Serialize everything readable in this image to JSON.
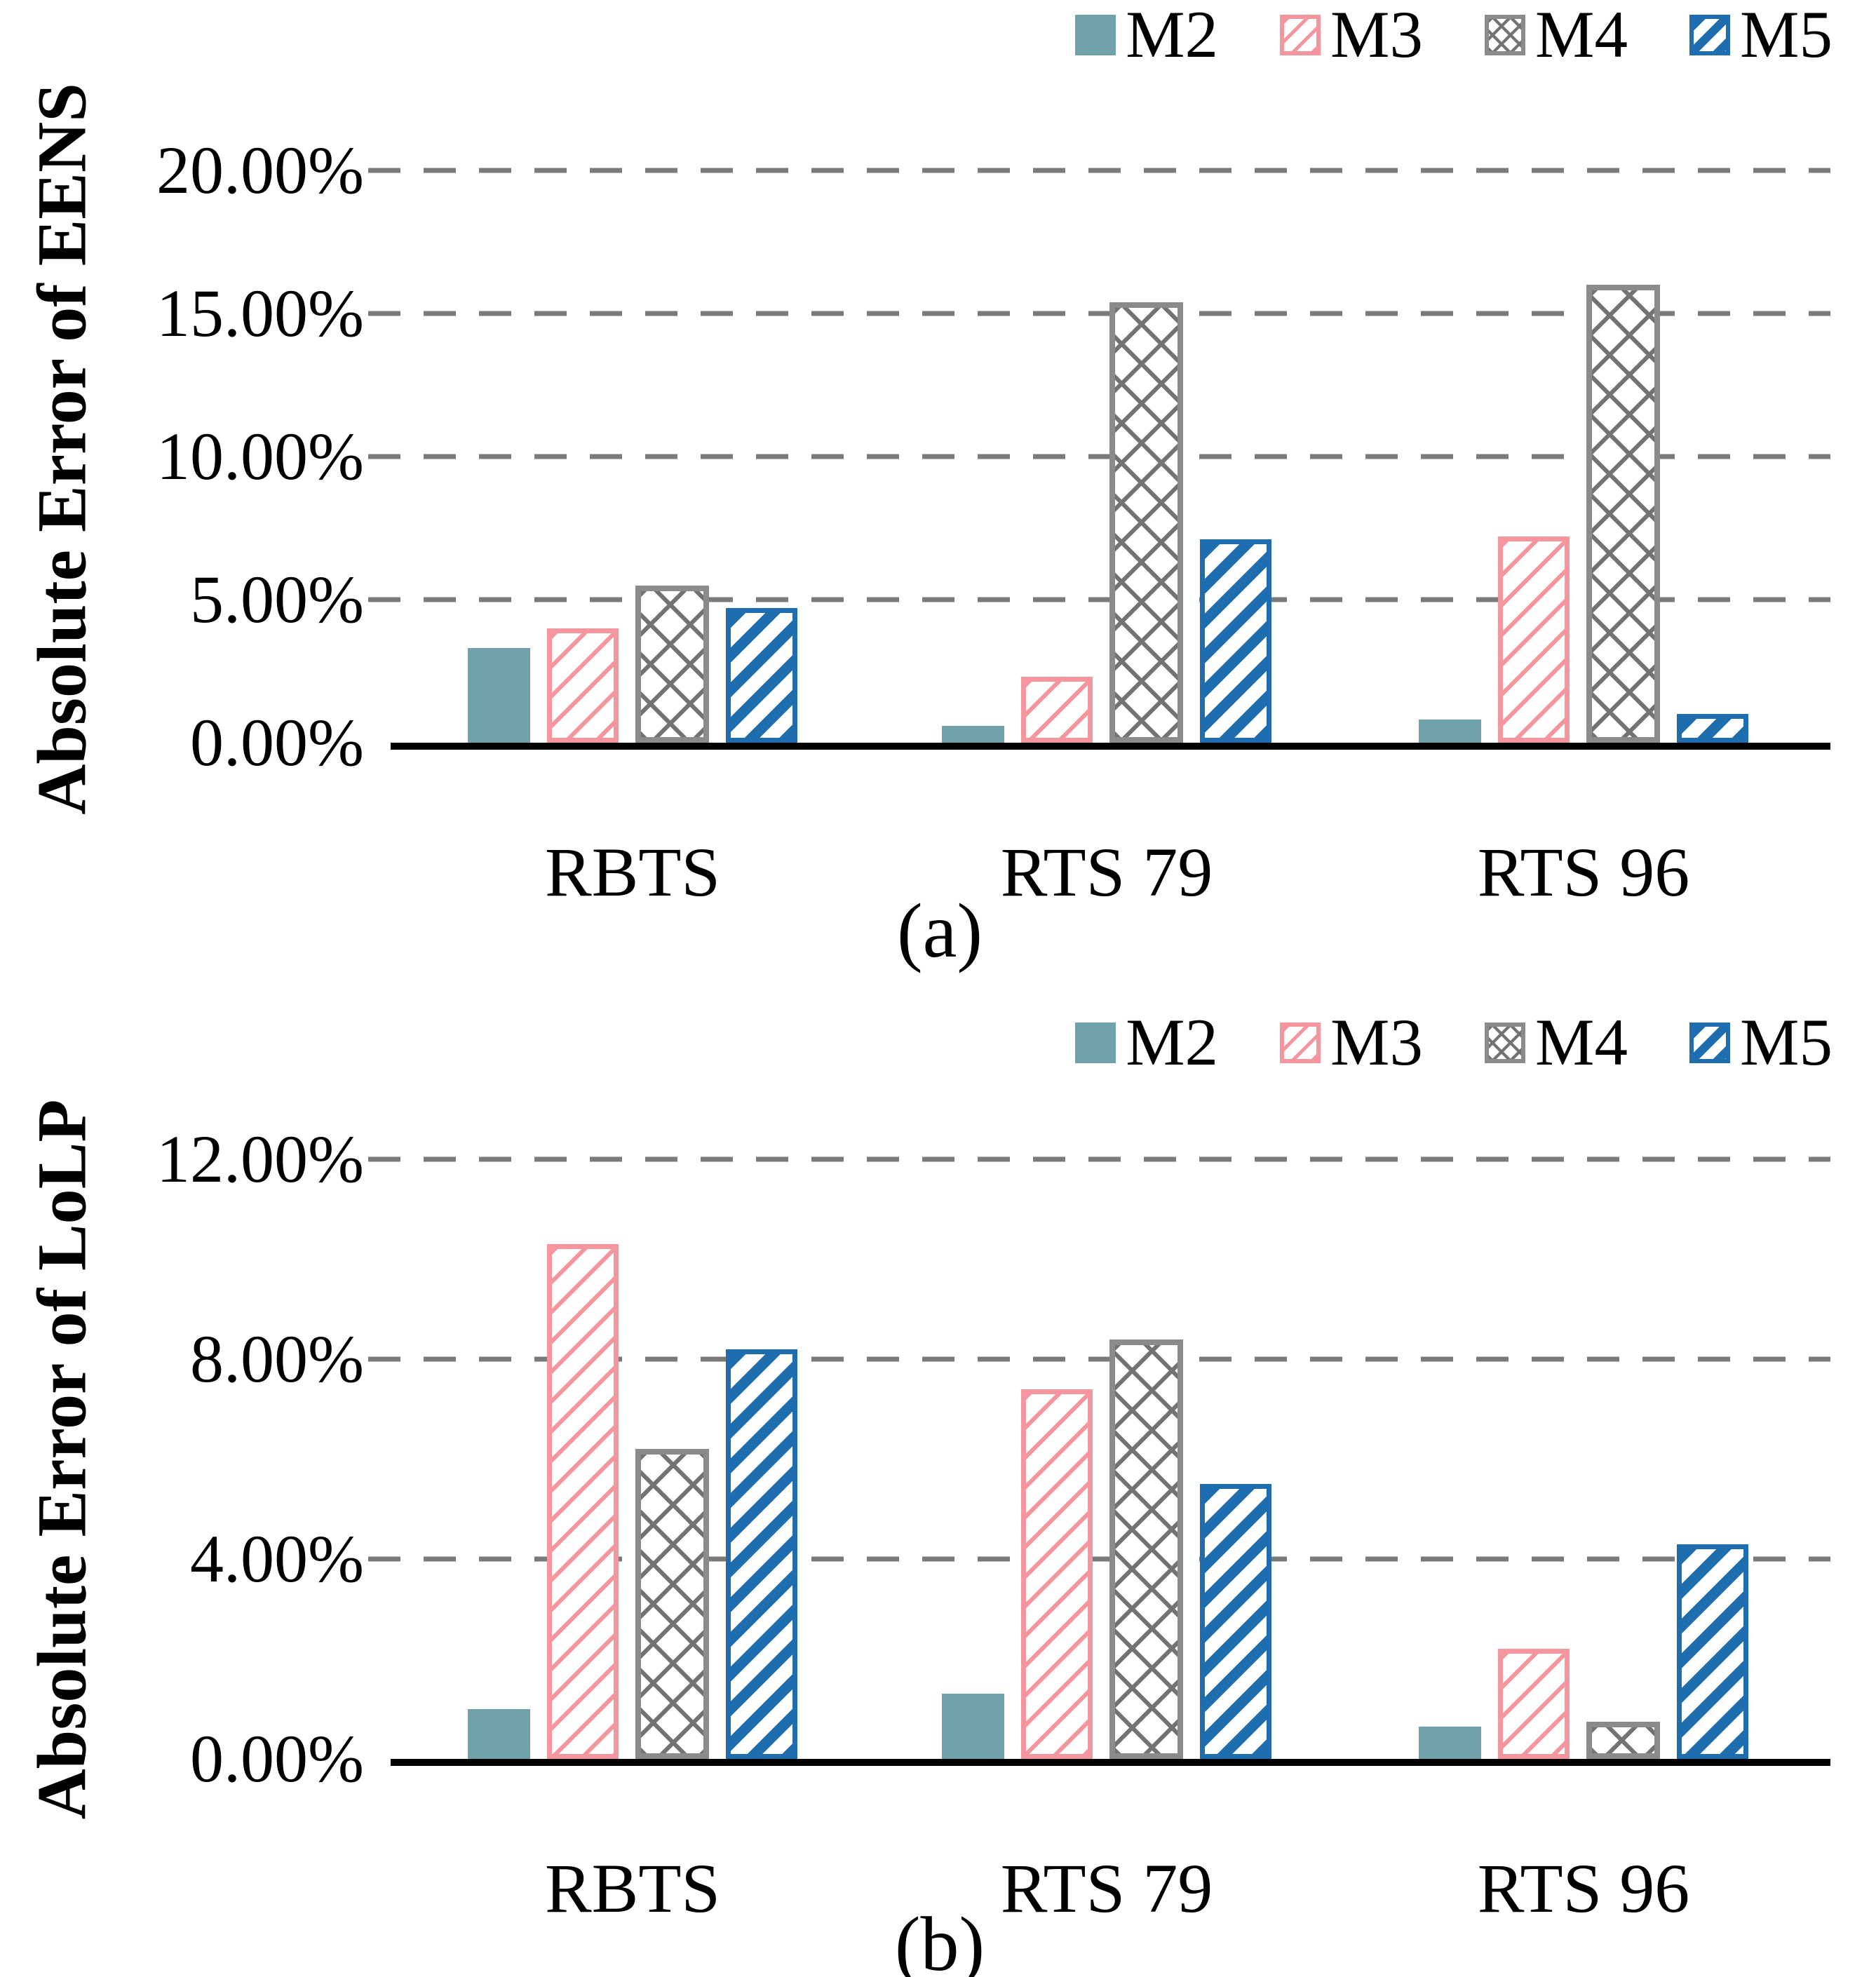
{
  "figure": {
    "background": "#ffffff"
  },
  "colors": {
    "M2": "#6FA2AA",
    "M3": "#F5959D",
    "M4": "#8B8B8B",
    "M5": "#1E6DAE",
    "gridline": "#7A7A7A",
    "axis": "#000000"
  },
  "legend": {
    "items": [
      "M2",
      "M3",
      "M4",
      "M5"
    ]
  },
  "chart_data": [
    {
      "id": "a",
      "type": "bar",
      "title": "(a)",
      "ylabel": "Absolute Error of EENS",
      "categories": [
        "RBTS",
        "RTS 79",
        "RTS 96"
      ],
      "series": [
        {
          "name": "M2",
          "values": [
            3.3,
            0.6,
            0.8
          ]
        },
        {
          "name": "M3",
          "values": [
            4.0,
            2.3,
            7.2
          ]
        },
        {
          "name": "M4",
          "values": [
            5.5,
            15.4,
            16.0
          ]
        },
        {
          "name": "M5",
          "values": [
            4.7,
            7.1,
            1.0
          ]
        }
      ],
      "unit": "%",
      "ylim": [
        0,
        20
      ],
      "ytick_step": 5,
      "yticks": [
        "20.00%",
        "15.00%",
        "10.00%",
        "5.00%",
        "0.00%"
      ],
      "grid": true,
      "grid_style": "dashed",
      "legend_position": "top-right"
    },
    {
      "id": "b",
      "type": "bar",
      "title": "(b)",
      "ylabel": "Absolute Error of LoLP",
      "categories": [
        "RBTS",
        "RTS 79",
        "RTS 96"
      ],
      "series": [
        {
          "name": "M2",
          "values": [
            1.0,
            1.3,
            0.65
          ]
        },
        {
          "name": "M3",
          "values": [
            10.3,
            7.4,
            2.2
          ]
        },
        {
          "name": "M4",
          "values": [
            6.2,
            8.4,
            0.75
          ]
        },
        {
          "name": "M5",
          "values": [
            8.2,
            5.5,
            4.3
          ]
        }
      ],
      "unit": "%",
      "ylim": [
        0,
        12
      ],
      "ytick_step": 4,
      "yticks": [
        "12.00%",
        "8.00%",
        "4.00%",
        "0.00%"
      ],
      "grid": true,
      "grid_style": "dashed",
      "legend_position": "top-right"
    }
  ]
}
